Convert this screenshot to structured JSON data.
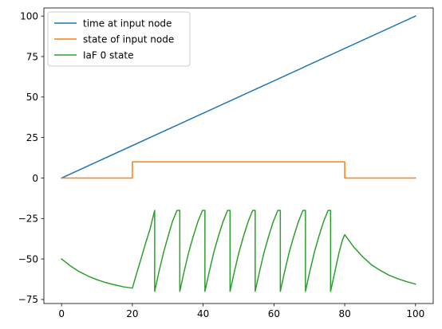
{
  "chart_data": {
    "type": "line",
    "title": "",
    "xlabel": "",
    "ylabel": "",
    "xlim": [
      -5,
      105
    ],
    "ylim": [
      -77.5,
      105
    ],
    "x_ticks": [
      0,
      20,
      40,
      60,
      80,
      100
    ],
    "y_ticks": [
      -75,
      -50,
      -25,
      0,
      25,
      50,
      75,
      100
    ],
    "grid": false,
    "legend_position": "upper-left",
    "series": [
      {
        "name": "time at input node",
        "color": "#1f77b4",
        "x": [
          0,
          100
        ],
        "y": [
          0,
          100
        ]
      },
      {
        "name": "state of input node",
        "color": "#ff7f0e",
        "x": [
          0,
          20,
          20,
          80,
          80,
          100
        ],
        "y": [
          0,
          0,
          10,
          10,
          0,
          0
        ]
      },
      {
        "name": "IaF 0 state",
        "color": "#2ca02c",
        "x": [
          0,
          2.5,
          5,
          7.5,
          10,
          12.5,
          15,
          17.5,
          20,
          21.2,
          22.5,
          23.7,
          25,
          26.3,
          26.3,
          27.5,
          28.8,
          30.1,
          31.3,
          32.6,
          33.4,
          33.4,
          34.6,
          35.9,
          37.2,
          38.5,
          39.8,
          40.5,
          40.5,
          41.7,
          43,
          44.3,
          45.6,
          46.9,
          47.6,
          47.6,
          48.8,
          50.1,
          51.4,
          52.7,
          54,
          54.7,
          54.7,
          55.9,
          57.2,
          58.5,
          59.8,
          61.1,
          61.8,
          61.8,
          63,
          64.3,
          65.6,
          66.9,
          68.2,
          68.9,
          68.9,
          70.1,
          71.4,
          72.7,
          74,
          75.3,
          76,
          76,
          77.2,
          78.4,
          79.4,
          80,
          82.5,
          85,
          87.5,
          90,
          92.5,
          95,
          97.5,
          100
        ],
        "y": [
          -50,
          -54.3,
          -57.8,
          -60.6,
          -62.8,
          -64.6,
          -66,
          -67.2,
          -68,
          -59,
          -49.5,
          -40.5,
          -31.5,
          -20,
          -70,
          -58,
          -46,
          -36,
          -27,
          -20,
          -20,
          -70,
          -58,
          -46,
          -36,
          -27,
          -20,
          -20,
          -70,
          -58,
          -46,
          -36,
          -27,
          -20,
          -20,
          -70,
          -58,
          -46,
          -36,
          -27,
          -20,
          -20,
          -70,
          -58,
          -46,
          -36,
          -27,
          -20,
          -20,
          -70,
          -58,
          -46,
          -36,
          -27,
          -20,
          -20,
          -70,
          -58,
          -46,
          -36,
          -27,
          -20,
          -20,
          -70,
          -58,
          -46,
          -38,
          -35,
          -42.5,
          -48.5,
          -53.5,
          -57,
          -60,
          -62.2,
          -64,
          -65.5
        ]
      }
    ]
  }
}
